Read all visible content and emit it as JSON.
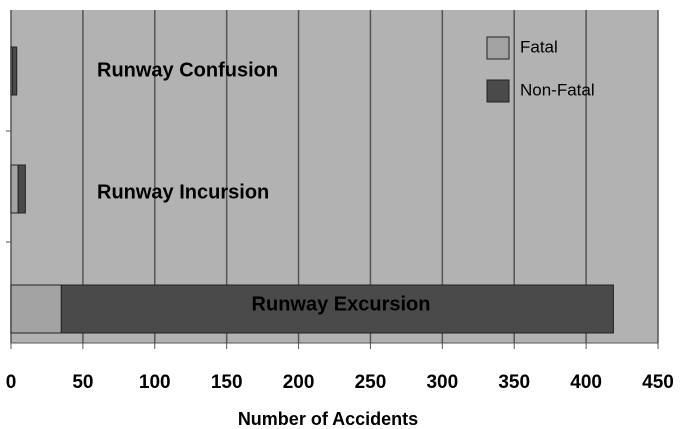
{
  "chart_data": {
    "type": "bar",
    "orientation": "horizontal",
    "stacked": true,
    "categories": [
      "Runway Confusion",
      "Runway Incursion",
      "Runway Excursion"
    ],
    "series": [
      {
        "name": "Fatal",
        "color": "#a3a3a3",
        "values": [
          1,
          5,
          35
        ]
      },
      {
        "name": "Non-Fatal",
        "color": "#4a4a4a",
        "values": [
          3,
          5,
          384
        ]
      }
    ],
    "xlabel": "Number of Accidents",
    "xlim": [
      0,
      450
    ],
    "xticks": [
      0,
      50,
      100,
      150,
      200,
      250,
      300,
      350,
      400,
      450
    ],
    "grid": true,
    "legend": "upper right"
  }
}
